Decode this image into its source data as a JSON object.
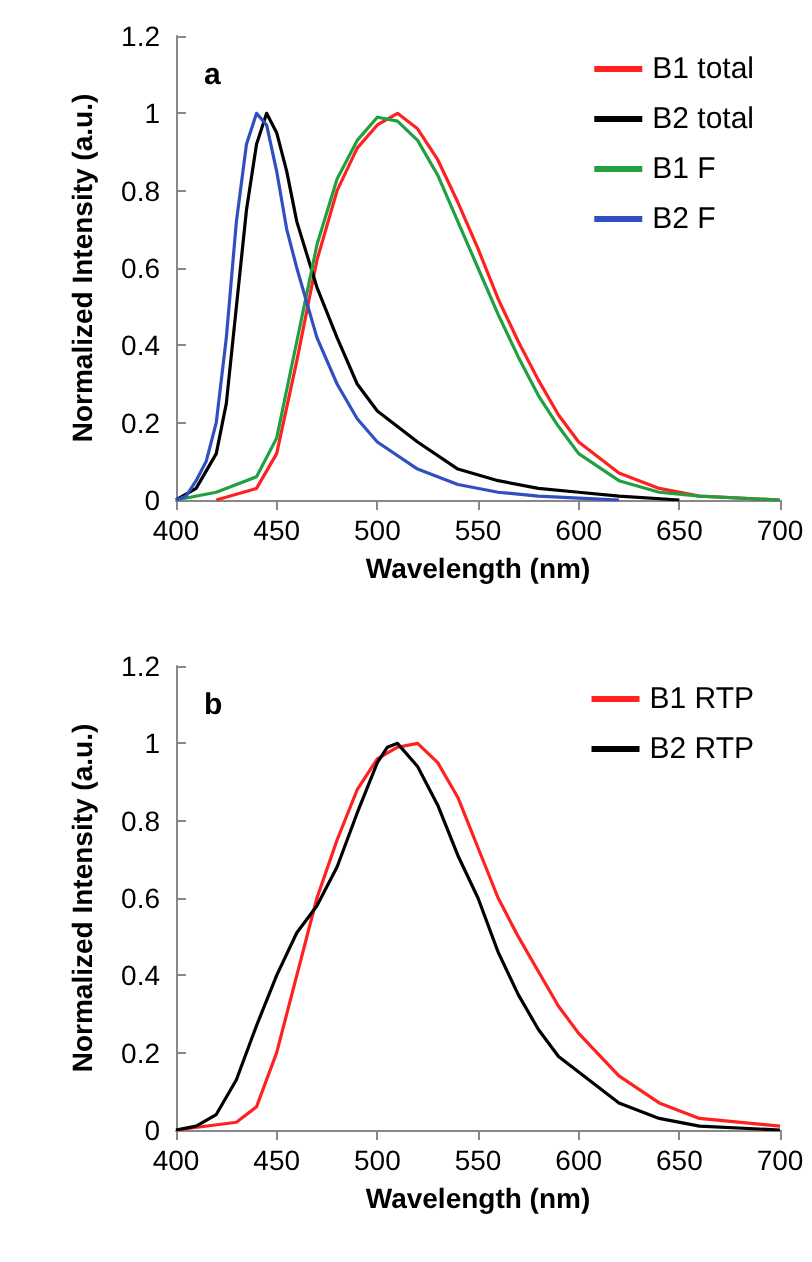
{
  "chart_data": [
    {
      "type": "line",
      "xlabel": "Wavelength (nm)",
      "ylabel": "Normalized Intensity (a.u.)",
      "annotations": [
        "a"
      ],
      "xlim": [
        400,
        700
      ],
      "xticks": [
        400,
        450,
        500,
        550,
        600,
        650,
        700
      ],
      "ylim": [
        0,
        1.2
      ],
      "yticks": [
        0,
        0.2,
        0.4,
        0.6,
        0.8,
        1,
        1.2
      ],
      "grid": false,
      "legend": "top right",
      "marker": "none",
      "line_style": "solid",
      "series": [
        {
          "name": "B1 total",
          "color": "#ff2020",
          "x": [
            420,
            440,
            450,
            460,
            470,
            480,
            490,
            500,
            510,
            520,
            530,
            540,
            550,
            560,
            570,
            580,
            590,
            600,
            620,
            640,
            660,
            700
          ],
          "values": [
            0,
            0.03,
            0.12,
            0.36,
            0.62,
            0.8,
            0.91,
            0.97,
            1.0,
            0.96,
            0.88,
            0.77,
            0.65,
            0.52,
            0.41,
            0.31,
            0.22,
            0.15,
            0.07,
            0.03,
            0.01,
            0
          ]
        },
        {
          "name": "B2 total",
          "color": "#000000",
          "x": [
            400,
            410,
            420,
            425,
            430,
            435,
            440,
            445,
            450,
            455,
            460,
            470,
            480,
            490,
            500,
            520,
            540,
            560,
            580,
            600,
            620,
            650
          ],
          "values": [
            0,
            0.03,
            0.12,
            0.25,
            0.5,
            0.75,
            0.92,
            1.0,
            0.95,
            0.85,
            0.72,
            0.55,
            0.42,
            0.3,
            0.23,
            0.15,
            0.08,
            0.05,
            0.03,
            0.02,
            0.01,
            0
          ]
        },
        {
          "name": "B1 F",
          "color": "#20a040",
          "x": [
            400,
            420,
            440,
            450,
            460,
            470,
            480,
            490,
            500,
            510,
            520,
            530,
            540,
            550,
            560,
            570,
            580,
            590,
            600,
            620,
            640,
            660,
            700
          ],
          "values": [
            0,
            0.02,
            0.06,
            0.16,
            0.41,
            0.66,
            0.83,
            0.93,
            0.99,
            0.98,
            0.93,
            0.84,
            0.72,
            0.6,
            0.48,
            0.37,
            0.27,
            0.19,
            0.12,
            0.05,
            0.02,
            0.01,
            0
          ]
        },
        {
          "name": "B2 F",
          "color": "#3050c0",
          "x": [
            400,
            405,
            410,
            415,
            420,
            425,
            430,
            435,
            440,
            445,
            450,
            455,
            460,
            470,
            480,
            490,
            500,
            520,
            540,
            560,
            580,
            600,
            620
          ],
          "values": [
            0,
            0.01,
            0.05,
            0.1,
            0.2,
            0.42,
            0.72,
            0.92,
            1.0,
            0.97,
            0.85,
            0.7,
            0.6,
            0.42,
            0.3,
            0.21,
            0.15,
            0.08,
            0.04,
            0.02,
            0.01,
            0.005,
            0
          ]
        }
      ]
    },
    {
      "type": "line",
      "xlabel": "Wavelength (nm)",
      "ylabel": "Normalized Intensity (a.u.)",
      "annotations": [
        "b"
      ],
      "xlim": [
        400,
        700
      ],
      "xticks": [
        400,
        450,
        500,
        550,
        600,
        650,
        700
      ],
      "ylim": [
        0,
        1.2
      ],
      "yticks": [
        0,
        0.2,
        0.4,
        0.6,
        0.8,
        1,
        1.2
      ],
      "grid": false,
      "legend": "top right",
      "marker": "none",
      "line_style": "solid",
      "series": [
        {
          "name": "B1 RTP",
          "color": "#ff2020",
          "x": [
            400,
            430,
            440,
            450,
            460,
            470,
            480,
            490,
            500,
            510,
            520,
            530,
            540,
            550,
            560,
            570,
            580,
            590,
            600,
            620,
            640,
            660,
            700
          ],
          "values": [
            0,
            0.02,
            0.06,
            0.2,
            0.4,
            0.6,
            0.75,
            0.88,
            0.96,
            0.99,
            1.0,
            0.95,
            0.86,
            0.73,
            0.6,
            0.5,
            0.41,
            0.32,
            0.25,
            0.14,
            0.07,
            0.03,
            0.01
          ]
        },
        {
          "name": "B2 RTP",
          "color": "#000000",
          "x": [
            400,
            410,
            420,
            430,
            440,
            450,
            460,
            470,
            480,
            490,
            500,
            505,
            510,
            520,
            530,
            540,
            550,
            560,
            570,
            580,
            590,
            600,
            620,
            640,
            660,
            700
          ],
          "values": [
            0,
            0.01,
            0.04,
            0.13,
            0.27,
            0.4,
            0.51,
            0.58,
            0.68,
            0.82,
            0.95,
            0.99,
            1.0,
            0.94,
            0.84,
            0.71,
            0.6,
            0.46,
            0.35,
            0.26,
            0.19,
            0.15,
            0.07,
            0.03,
            0.01,
            0
          ]
        }
      ]
    }
  ]
}
